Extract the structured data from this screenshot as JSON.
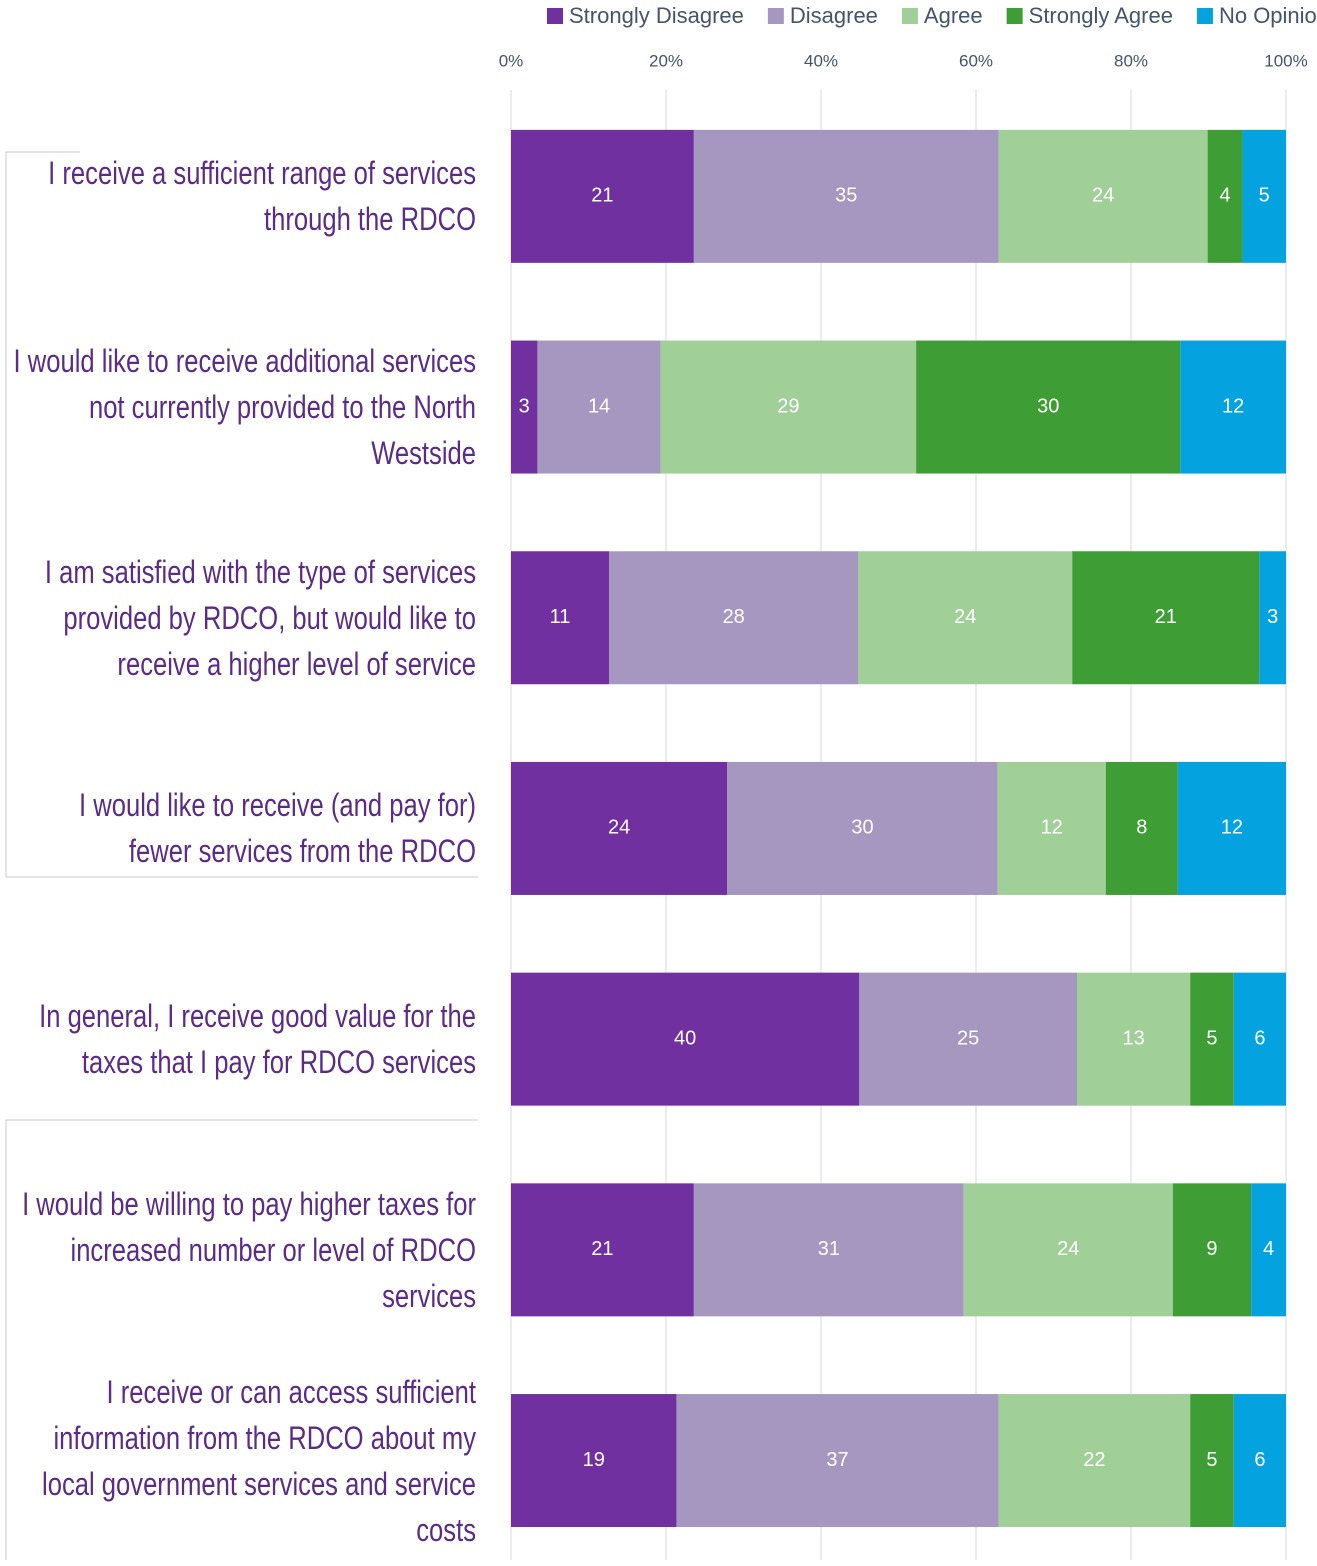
{
  "chart_data": {
    "type": "stacked_percent_bar",
    "categories": [
      "I receive a sufficient range of services through the RDCO",
      "I would like to receive additional services not currently provided to the North Westside",
      "I am satisfied with the type of services provided by RDCO, but would like to receive a higher level of service",
      "I would like to receive (and pay for) fewer services from the RDCO",
      "In general, I receive good value for the taxes that I pay for RDCO services",
      "I would be willing to pay higher taxes for increased number or level of RDCO services",
      "I receive or can access sufficient information from the RDCO about my local government services and service costs"
    ],
    "series": [
      {
        "name": "Strongly Disagree",
        "color": "#7030a0",
        "values": [
          21,
          3,
          11,
          24,
          40,
          21,
          19
        ]
      },
      {
        "name": "Disagree",
        "color": "#a597c0",
        "values": [
          35,
          14,
          28,
          30,
          25,
          31,
          37
        ]
      },
      {
        "name": "Agree",
        "color": "#a0cf98",
        "values": [
          24,
          29,
          24,
          12,
          13,
          24,
          22
        ]
      },
      {
        "name": "Strongly Agree",
        "color": "#3e9d35",
        "values": [
          4,
          30,
          21,
          8,
          5,
          9,
          5
        ]
      },
      {
        "name": "No Opinion",
        "color": "#05a2e0",
        "values": [
          5,
          12,
          3,
          12,
          6,
          4,
          6
        ]
      }
    ],
    "xlim": [
      0,
      100
    ],
    "xticks": [
      {
        "value": 0,
        "label": "0%"
      },
      {
        "value": 20,
        "label": "20%"
      },
      {
        "value": 40,
        "label": "40%"
      },
      {
        "value": 60,
        "label": "60%"
      },
      {
        "value": 80,
        "label": "80%"
      },
      {
        "value": 100,
        "label": "100%"
      }
    ],
    "grid": true,
    "legend": "top"
  }
}
